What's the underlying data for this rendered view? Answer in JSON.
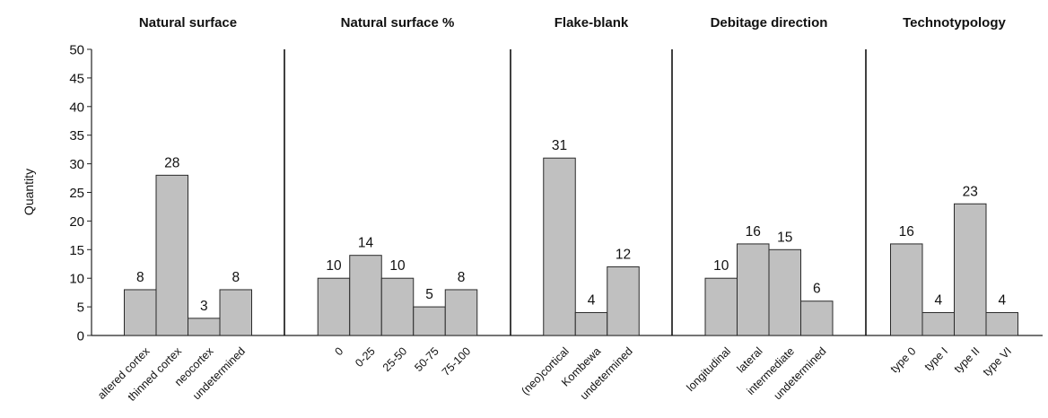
{
  "chart_data": {
    "type": "bar",
    "ylabel": "Quantity",
    "ylim": [
      0,
      50
    ],
    "yticks": [
      0,
      5,
      10,
      15,
      20,
      25,
      30,
      35,
      40,
      45,
      50
    ],
    "grid": false,
    "bar_color": "#c0c0c0",
    "panels": [
      {
        "title": "Natural surface",
        "categories": [
          "altered cortex",
          "thinned cortex",
          "neocortex",
          "undetermined"
        ],
        "values": [
          8,
          28,
          3,
          8
        ]
      },
      {
        "title": "Natural surface %",
        "categories": [
          "0",
          "0-25",
          "25-50",
          "50-75",
          "75-100"
        ],
        "values": [
          10,
          14,
          10,
          5,
          8
        ]
      },
      {
        "title": "Flake-blank",
        "categories": [
          "(neo)cortical",
          "Kombewa",
          "undetermined"
        ],
        "values": [
          31,
          4,
          12
        ]
      },
      {
        "title": "Debitage direction",
        "categories": [
          "longitudinal",
          "lateral",
          "intermediate",
          "undetermined"
        ],
        "values": [
          10,
          16,
          15,
          6
        ]
      },
      {
        "title": "Technotypology",
        "categories": [
          "type 0",
          "type I",
          "type II",
          "type VI"
        ],
        "values": [
          16,
          4,
          23,
          4
        ]
      }
    ]
  }
}
